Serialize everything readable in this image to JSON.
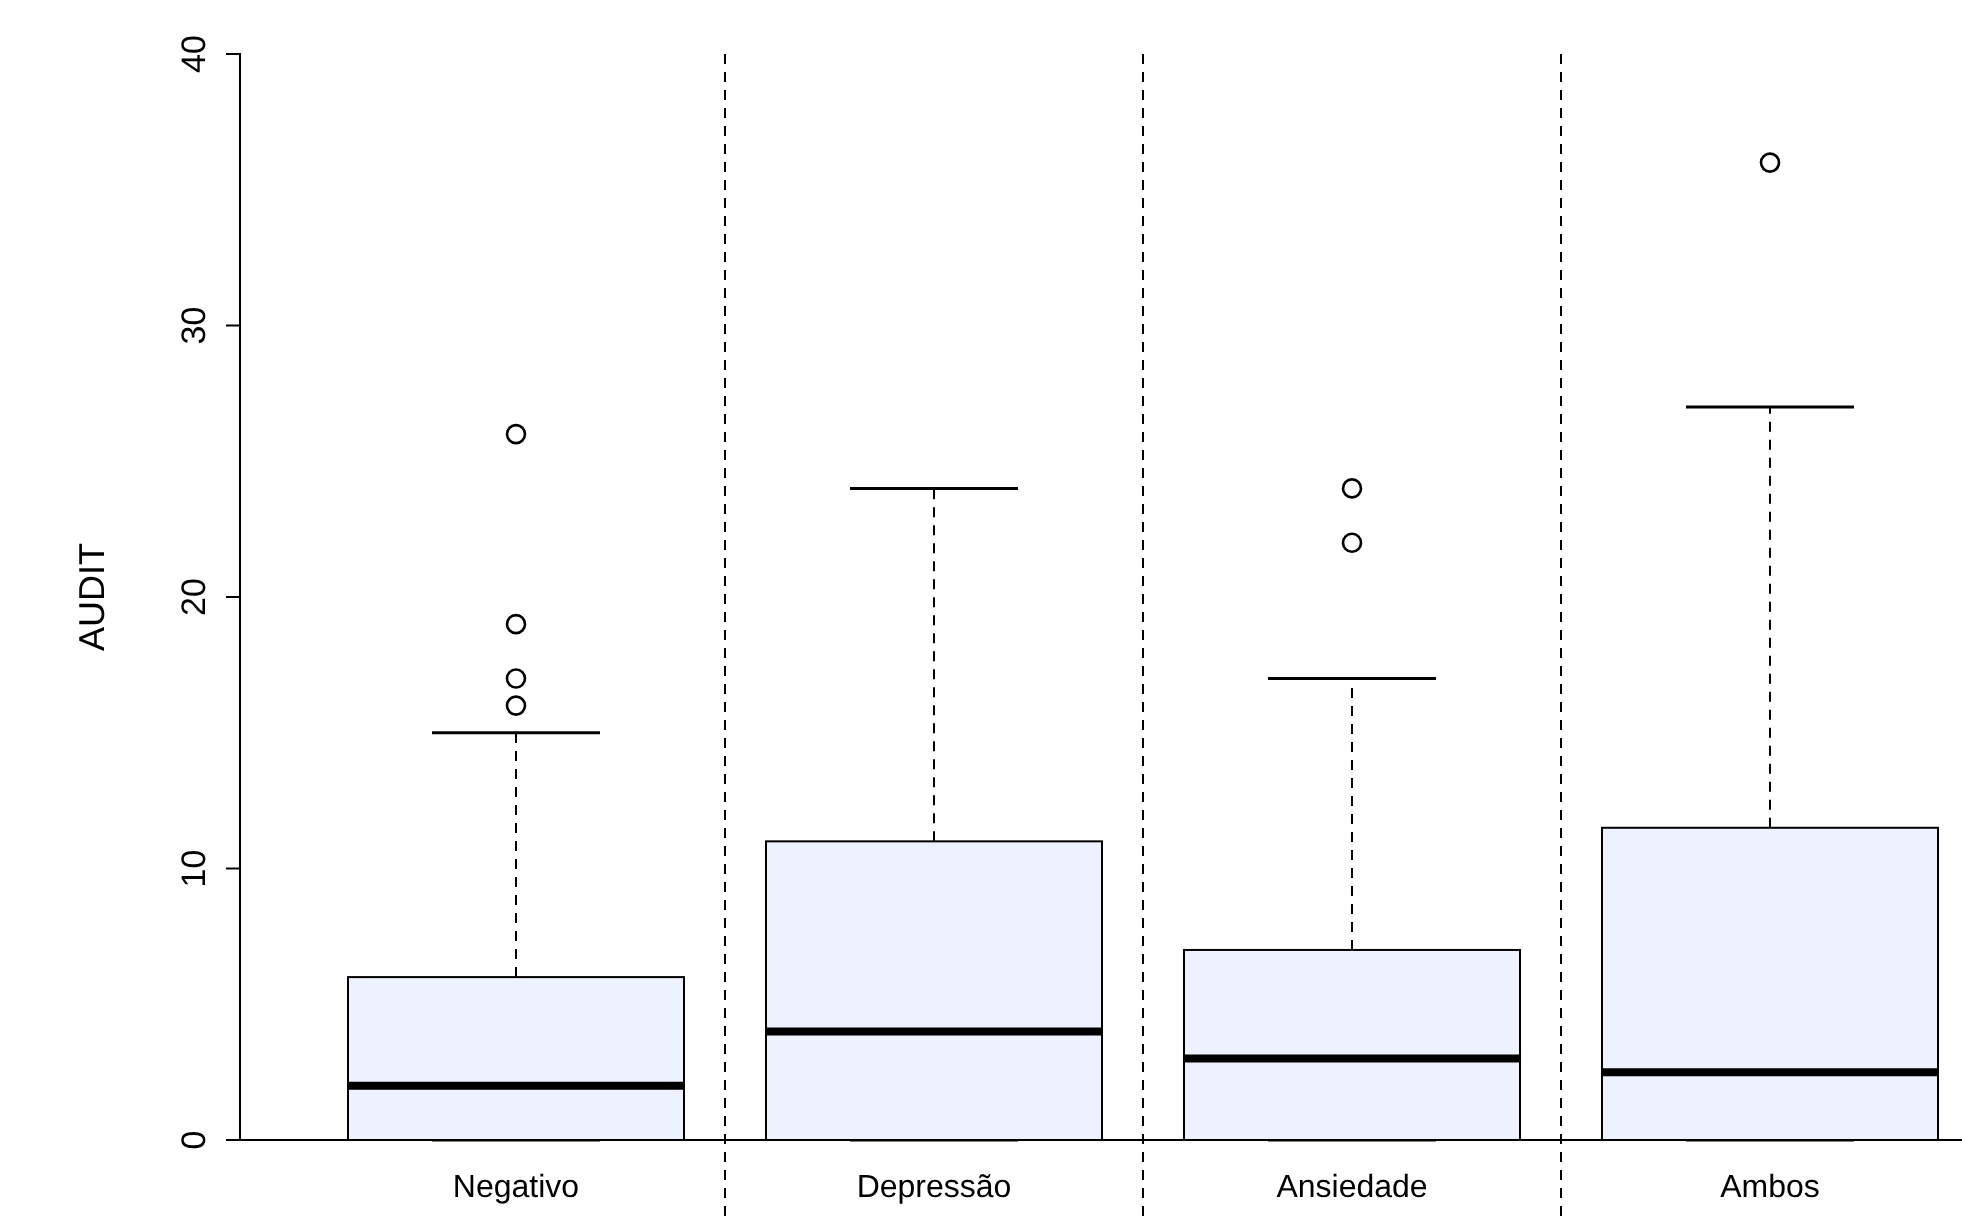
{
  "chart_data": {
    "type": "box",
    "ylabel": "AUDIT",
    "categories": [
      "Negativo",
      "Depressão",
      "Ansiedade",
      "Ambos"
    ],
    "boxes": [
      {
        "low": 0,
        "q1": 0,
        "median": 2,
        "q3": 6,
        "high": 15,
        "outliers": [
          16,
          17,
          19,
          26
        ]
      },
      {
        "low": 0,
        "q1": 0,
        "median": 4,
        "q3": 11,
        "high": 24
      },
      {
        "low": 0,
        "q1": 0,
        "median": 3,
        "q3": 7,
        "high": 17,
        "outliers": [
          22,
          24
        ]
      },
      {
        "low": 0,
        "q1": 0,
        "median": 2.5,
        "q3": 11.5,
        "high": 27,
        "outliers": [
          36
        ]
      }
    ],
    "color": "#eef1ff",
    "ylim": [
      0,
      40
    ],
    "yticks": [
      0,
      10,
      20,
      30,
      40
    ],
    "grid": false
  }
}
